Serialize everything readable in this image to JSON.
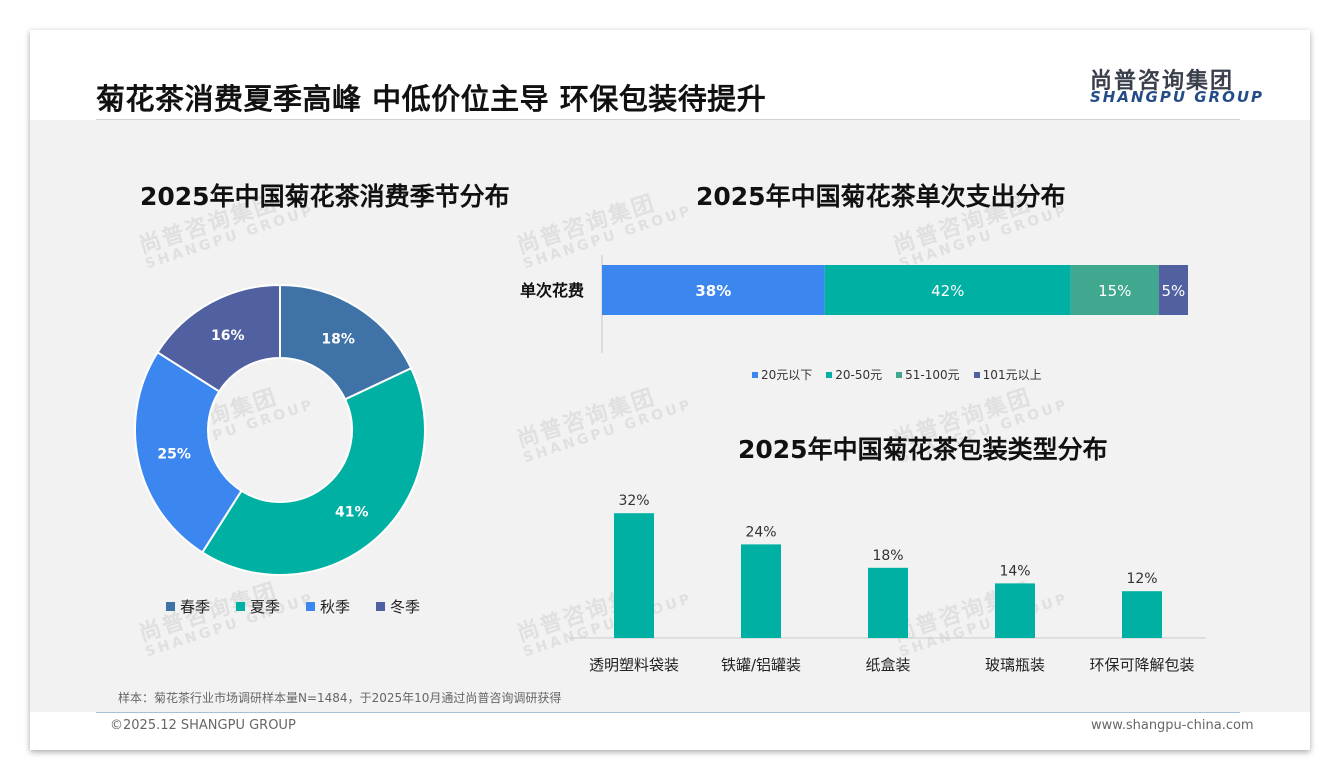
{
  "header": {
    "title": "菊花茶消费夏季高峰 中低价位主导 环保包装待提升"
  },
  "logo": {
    "cn": "尚普咨询集团",
    "en": "SHANGPU GROUP"
  },
  "watermark": {
    "cn": "尚普咨询集团",
    "en": "SHANGPU GROUP"
  },
  "colors": {
    "season": [
      "#3f73a8",
      "#00b0a3",
      "#3c86f0",
      "#5060a0"
    ],
    "spend": [
      "#3c86f0",
      "#00b0a3",
      "#3fa88f",
      "#5060a0"
    ],
    "package": "#00b0a3"
  },
  "chart_data": [
    {
      "type": "pie",
      "title": "2025年中国菊花茶消费季节分布",
      "categories": [
        "春季",
        "夏季",
        "秋季",
        "冬季"
      ],
      "values": [
        18,
        41,
        25,
        16
      ],
      "labels": [
        "18%",
        "41%",
        "25%",
        "16%"
      ],
      "legend": "bottom"
    },
    {
      "type": "bar",
      "orientation": "horizontal-stacked",
      "title": "2025年中国菊花茶单次支出分布",
      "categories": [
        "单次花费"
      ],
      "series": [
        {
          "name": "20元以下",
          "values": [
            38
          ],
          "label": "38%"
        },
        {
          "name": "20-50元",
          "values": [
            42
          ],
          "label": "42%"
        },
        {
          "name": "51-100元",
          "values": [
            15
          ],
          "label": "15%"
        },
        {
          "name": "101元以上",
          "values": [
            5
          ],
          "label": "5%"
        }
      ],
      "legend": "bottom"
    },
    {
      "type": "bar",
      "title": "2025年中国菊花茶包装类型分布",
      "categories": [
        "透明塑料袋装",
        "铁罐/铝罐装",
        "纸盒装",
        "玻璃瓶装",
        "环保可降解包装"
      ],
      "values": [
        32,
        24,
        18,
        14,
        12
      ],
      "labels": [
        "32%",
        "24%",
        "18%",
        "14%",
        "12%"
      ]
    }
  ],
  "footer": {
    "source": "样本：菊花茶行业市场调研样本量N=1484，于2025年10月通过尚普咨询调研获得",
    "copyright": "©2025.12 SHANGPU GROUP",
    "website": "www.shangpu-china.com"
  }
}
